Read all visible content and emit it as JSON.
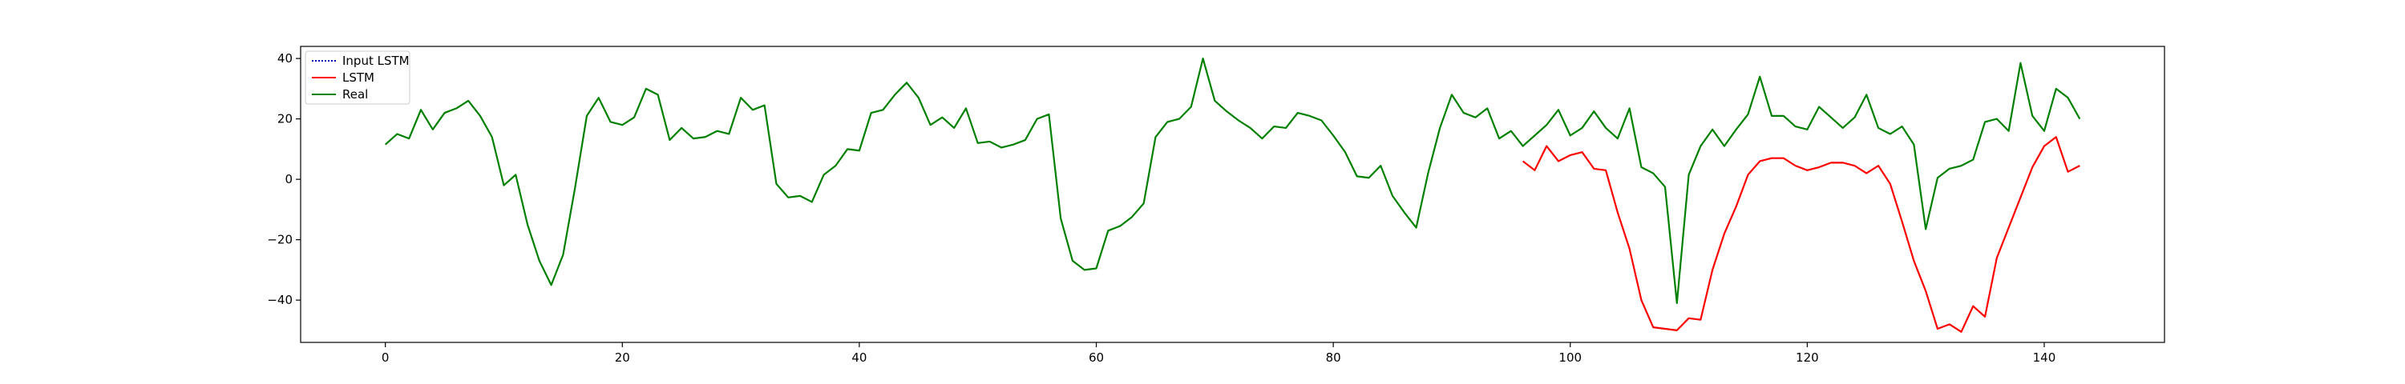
{
  "chart_data": {
    "type": "line",
    "title": "",
    "xlabel": "",
    "ylabel": "",
    "xlim": [
      -7.15,
      150.15
    ],
    "ylim": [
      -54,
      44
    ],
    "xticks": [
      0,
      20,
      40,
      60,
      80,
      100,
      120,
      140
    ],
    "yticks": [
      -40,
      -20,
      0,
      20,
      40
    ],
    "grid": false,
    "legend_position": "top-left",
    "legend": [
      {
        "label": "Input LSTM",
        "color": "#0000aa",
        "style": "dotted"
      },
      {
        "label": "LSTM",
        "color": "#ff0000",
        "style": "solid"
      },
      {
        "label": "Real",
        "color": "#008000",
        "style": "solid"
      }
    ],
    "series": [
      {
        "name": "Real",
        "color": "#008000",
        "x_start": 0,
        "values": [
          11.5,
          15,
          13.5,
          23,
          16.5,
          22,
          23.5,
          26,
          21,
          14,
          -2,
          1.5,
          -15,
          -27,
          -35,
          -25,
          -3,
          21,
          27,
          19,
          18,
          20.5,
          30,
          28,
          13,
          17,
          13.5,
          14,
          16,
          15,
          27,
          23,
          24.5,
          -1.5,
          -6,
          -5.5,
          -7.5,
          1.5,
          4.5,
          10,
          9.5,
          22,
          23,
          28,
          32,
          27,
          18,
          20.5,
          17,
          23.5,
          12,
          12.5,
          10.5,
          11.5,
          13,
          20,
          21.5,
          -13,
          -27,
          -30,
          -29.5,
          -17,
          -15.5,
          -12.5,
          -8,
          14,
          19,
          20,
          24,
          40,
          26,
          22.5,
          19.5,
          17,
          13.5,
          17.5,
          17,
          22,
          21,
          19.5,
          14.5,
          9,
          1,
          0.5,
          4.5,
          -5.5,
          -11,
          -16,
          2,
          17,
          28,
          22,
          20.5,
          23.5,
          13.5,
          16,
          11,
          14.5,
          18,
          23,
          14.5,
          17,
          22.5,
          17,
          13.5,
          23.5,
          4,
          2,
          -2.5,
          -41,
          1.5,
          11,
          16.5,
          11,
          16.5,
          21.5,
          34,
          21,
          21,
          17.5,
          16.5,
          24,
          20.5,
          17,
          20.5,
          28,
          17,
          15,
          17.5,
          11.5,
          -16.5,
          0.5,
          3.5,
          4.5,
          6.5,
          19,
          20,
          16,
          38.5,
          21,
          16,
          30,
          27,
          20
        ]
      },
      {
        "name": "LSTM",
        "color": "#ff0000",
        "x_start": 96,
        "values": [
          6,
          3,
          11,
          6,
          8,
          9,
          3.5,
          3,
          -11,
          -23,
          -40,
          -49,
          -49.5,
          -50,
          -46,
          -46.5,
          -30,
          -18,
          -9,
          1.5,
          6,
          7,
          7,
          4.5,
          3,
          4,
          5.5,
          5.5,
          4.5,
          2,
          4.5,
          -1.5,
          -14,
          -27,
          -37,
          -49.5,
          -48,
          -50.5,
          -42,
          -45.5,
          -26,
          -16,
          -6,
          4,
          11,
          14,
          2.5,
          4.5
        ]
      }
    ]
  }
}
